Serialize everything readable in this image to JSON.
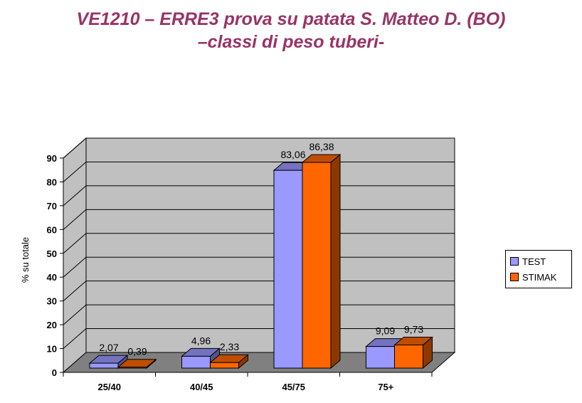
{
  "title_line1": "VE1210 – ERRE3  prova su patata S. Matteo D. (BO)",
  "title_line2": "–classi di peso tuberi-",
  "chart_data": {
    "type": "bar",
    "title": "VE1210 – ERRE3  prova su patata S. Matteo D. (BO) –classi di peso tuberi-",
    "xlabel": "",
    "ylabel": "% su totale",
    "categories": [
      "25/40",
      "40/45",
      "45/75",
      "75+"
    ],
    "series": [
      {
        "name": "TEST",
        "values": [
          2.07,
          4.96,
          83.06,
          9.09
        ],
        "labels": [
          "2,07",
          "4,96",
          "83,06",
          "9,09"
        ],
        "color": "#9999FF"
      },
      {
        "name": "STIMAK",
        "values": [
          0.39,
          2.33,
          86.38,
          9.73
        ],
        "labels": [
          "0,39",
          "2,33",
          "86,38",
          "9,73"
        ],
        "color": "#FF6600"
      }
    ],
    "yticks": [
      "0",
      "10",
      "20",
      "30",
      "40",
      "50",
      "60",
      "70",
      "80",
      "90"
    ],
    "ylim": [
      0,
      90
    ],
    "grid": true,
    "legend": "right",
    "wall_color": "#C0C0C0",
    "floor_color": "#808080"
  }
}
